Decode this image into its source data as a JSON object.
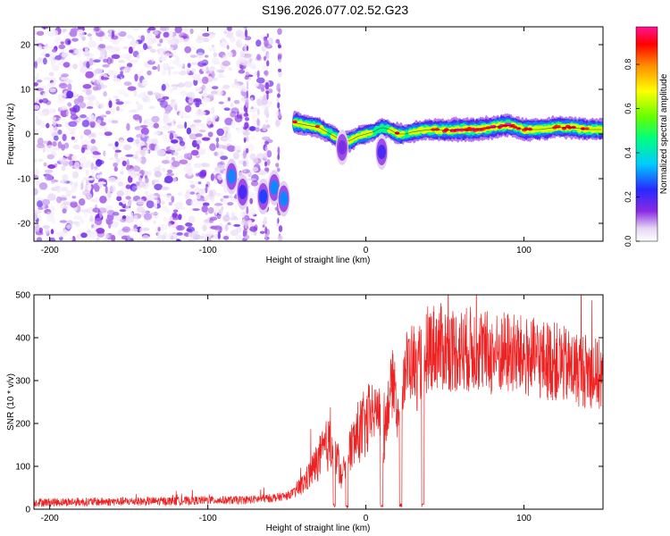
{
  "title": "S196.2026.077.02.52.G23",
  "chart_data": [
    {
      "type": "heatmap",
      "xlabel": "Height of straight line (km)",
      "ylabel": "Frequency (Hz)",
      "xlim": [
        -210,
        150
      ],
      "ylim": [
        -24,
        24
      ],
      "xticks": [
        -200,
        -100,
        0,
        100
      ],
      "yticks": [
        -20,
        -10,
        0,
        10,
        20
      ],
      "colorbar": {
        "label": "Normalized spectral amplitude",
        "range": [
          0,
          0.97
        ],
        "ticks": [
          0.0,
          0.2,
          0.4,
          0.6,
          0.8
        ],
        "colors": [
          "#ffffff",
          "#d9c2f0",
          "#8a2be2",
          "#3030ff",
          "#00c8ff",
          "#00ff80",
          "#7fff00",
          "#ffff00",
          "#ff8000",
          "#ff0000",
          "#ff1493"
        ]
      },
      "noise_region": {
        "x": [
          -210,
          -60
        ],
        "y": [
          -24,
          24
        ],
        "amplitude": [
          0.02,
          0.18
        ]
      },
      "ridge": {
        "x": [
          -45,
          -38,
          -30,
          -25,
          -20,
          -15,
          -10,
          -5,
          0,
          5,
          10,
          15,
          20,
          25,
          30,
          40,
          50,
          60,
          70,
          80,
          90,
          95,
          100,
          110,
          120,
          130,
          140,
          150
        ],
        "freq": [
          2.5,
          2.0,
          1.5,
          0.5,
          -0.5,
          -1.5,
          -1.5,
          -0.5,
          0.0,
          0.5,
          1.5,
          1.0,
          0.0,
          0.0,
          0.5,
          1.0,
          0.8,
          1.0,
          1.0,
          1.5,
          2.0,
          1.5,
          1.0,
          1.0,
          1.5,
          1.5,
          1.0,
          1.0
        ],
        "amplitude": [
          0.9,
          0.7,
          0.8,
          0.6,
          0.7,
          0.5,
          0.8,
          0.6,
          0.75,
          0.5,
          0.6,
          0.55,
          0.8,
          0.6,
          0.7,
          0.75,
          0.85,
          0.95,
          0.9,
          0.85,
          0.95,
          0.8,
          0.9,
          0.85,
          0.8,
          0.85,
          0.8,
          0.8
        ]
      },
      "features": [
        {
          "x": -85,
          "freq": -9.5,
          "amplitude": 0.3
        },
        {
          "x": -78,
          "freq": -13,
          "amplitude": 0.2
        },
        {
          "x": -65,
          "freq": -14,
          "amplitude": 0.25
        },
        {
          "x": -58,
          "freq": -12,
          "amplitude": 0.3
        },
        {
          "x": -52,
          "freq": -14.5,
          "amplitude": 0.3
        },
        {
          "x": 10,
          "freq": -4,
          "amplitude": 0.2
        },
        {
          "x": -15,
          "freq": -3,
          "amplitude": 0.15
        }
      ]
    },
    {
      "type": "line",
      "xlabel": "Height of straight line (km)",
      "ylabel": "SNR (10 * v/v)",
      "xlim": [
        -210,
        150
      ],
      "ylim": [
        0,
        500
      ],
      "xticks": [
        -200,
        -100,
        0,
        100
      ],
      "yticks": [
        0,
        100,
        200,
        300,
        400,
        500
      ],
      "color": "#ee2222",
      "x": [
        -210,
        -180,
        -150,
        -120,
        -100,
        -80,
        -70,
        -60,
        -50,
        -45,
        -40,
        -35,
        -30,
        -25,
        -20,
        -15,
        -12,
        -10,
        -5,
        0,
        5,
        8,
        10,
        15,
        18,
        20,
        22,
        25,
        30,
        32,
        35,
        40,
        45,
        50,
        60,
        70,
        80,
        90,
        100,
        110,
        120,
        130,
        140,
        150
      ],
      "y": [
        15,
        16,
        17,
        18,
        20,
        20,
        22,
        25,
        30,
        40,
        55,
        80,
        110,
        140,
        150,
        60,
        150,
        130,
        170,
        190,
        210,
        240,
        150,
        260,
        300,
        200,
        280,
        320,
        340,
        300,
        340,
        370,
        370,
        365,
        360,
        365,
        350,
        355,
        345,
        340,
        335,
        320,
        315,
        300
      ],
      "dips": [
        {
          "x": -20,
          "y": 5
        },
        {
          "x": -12,
          "y": 3
        },
        {
          "x": 10,
          "y": 5
        },
        {
          "x": 22,
          "y": 5
        },
        {
          "x": 36,
          "y": 5
        }
      ]
    }
  ]
}
